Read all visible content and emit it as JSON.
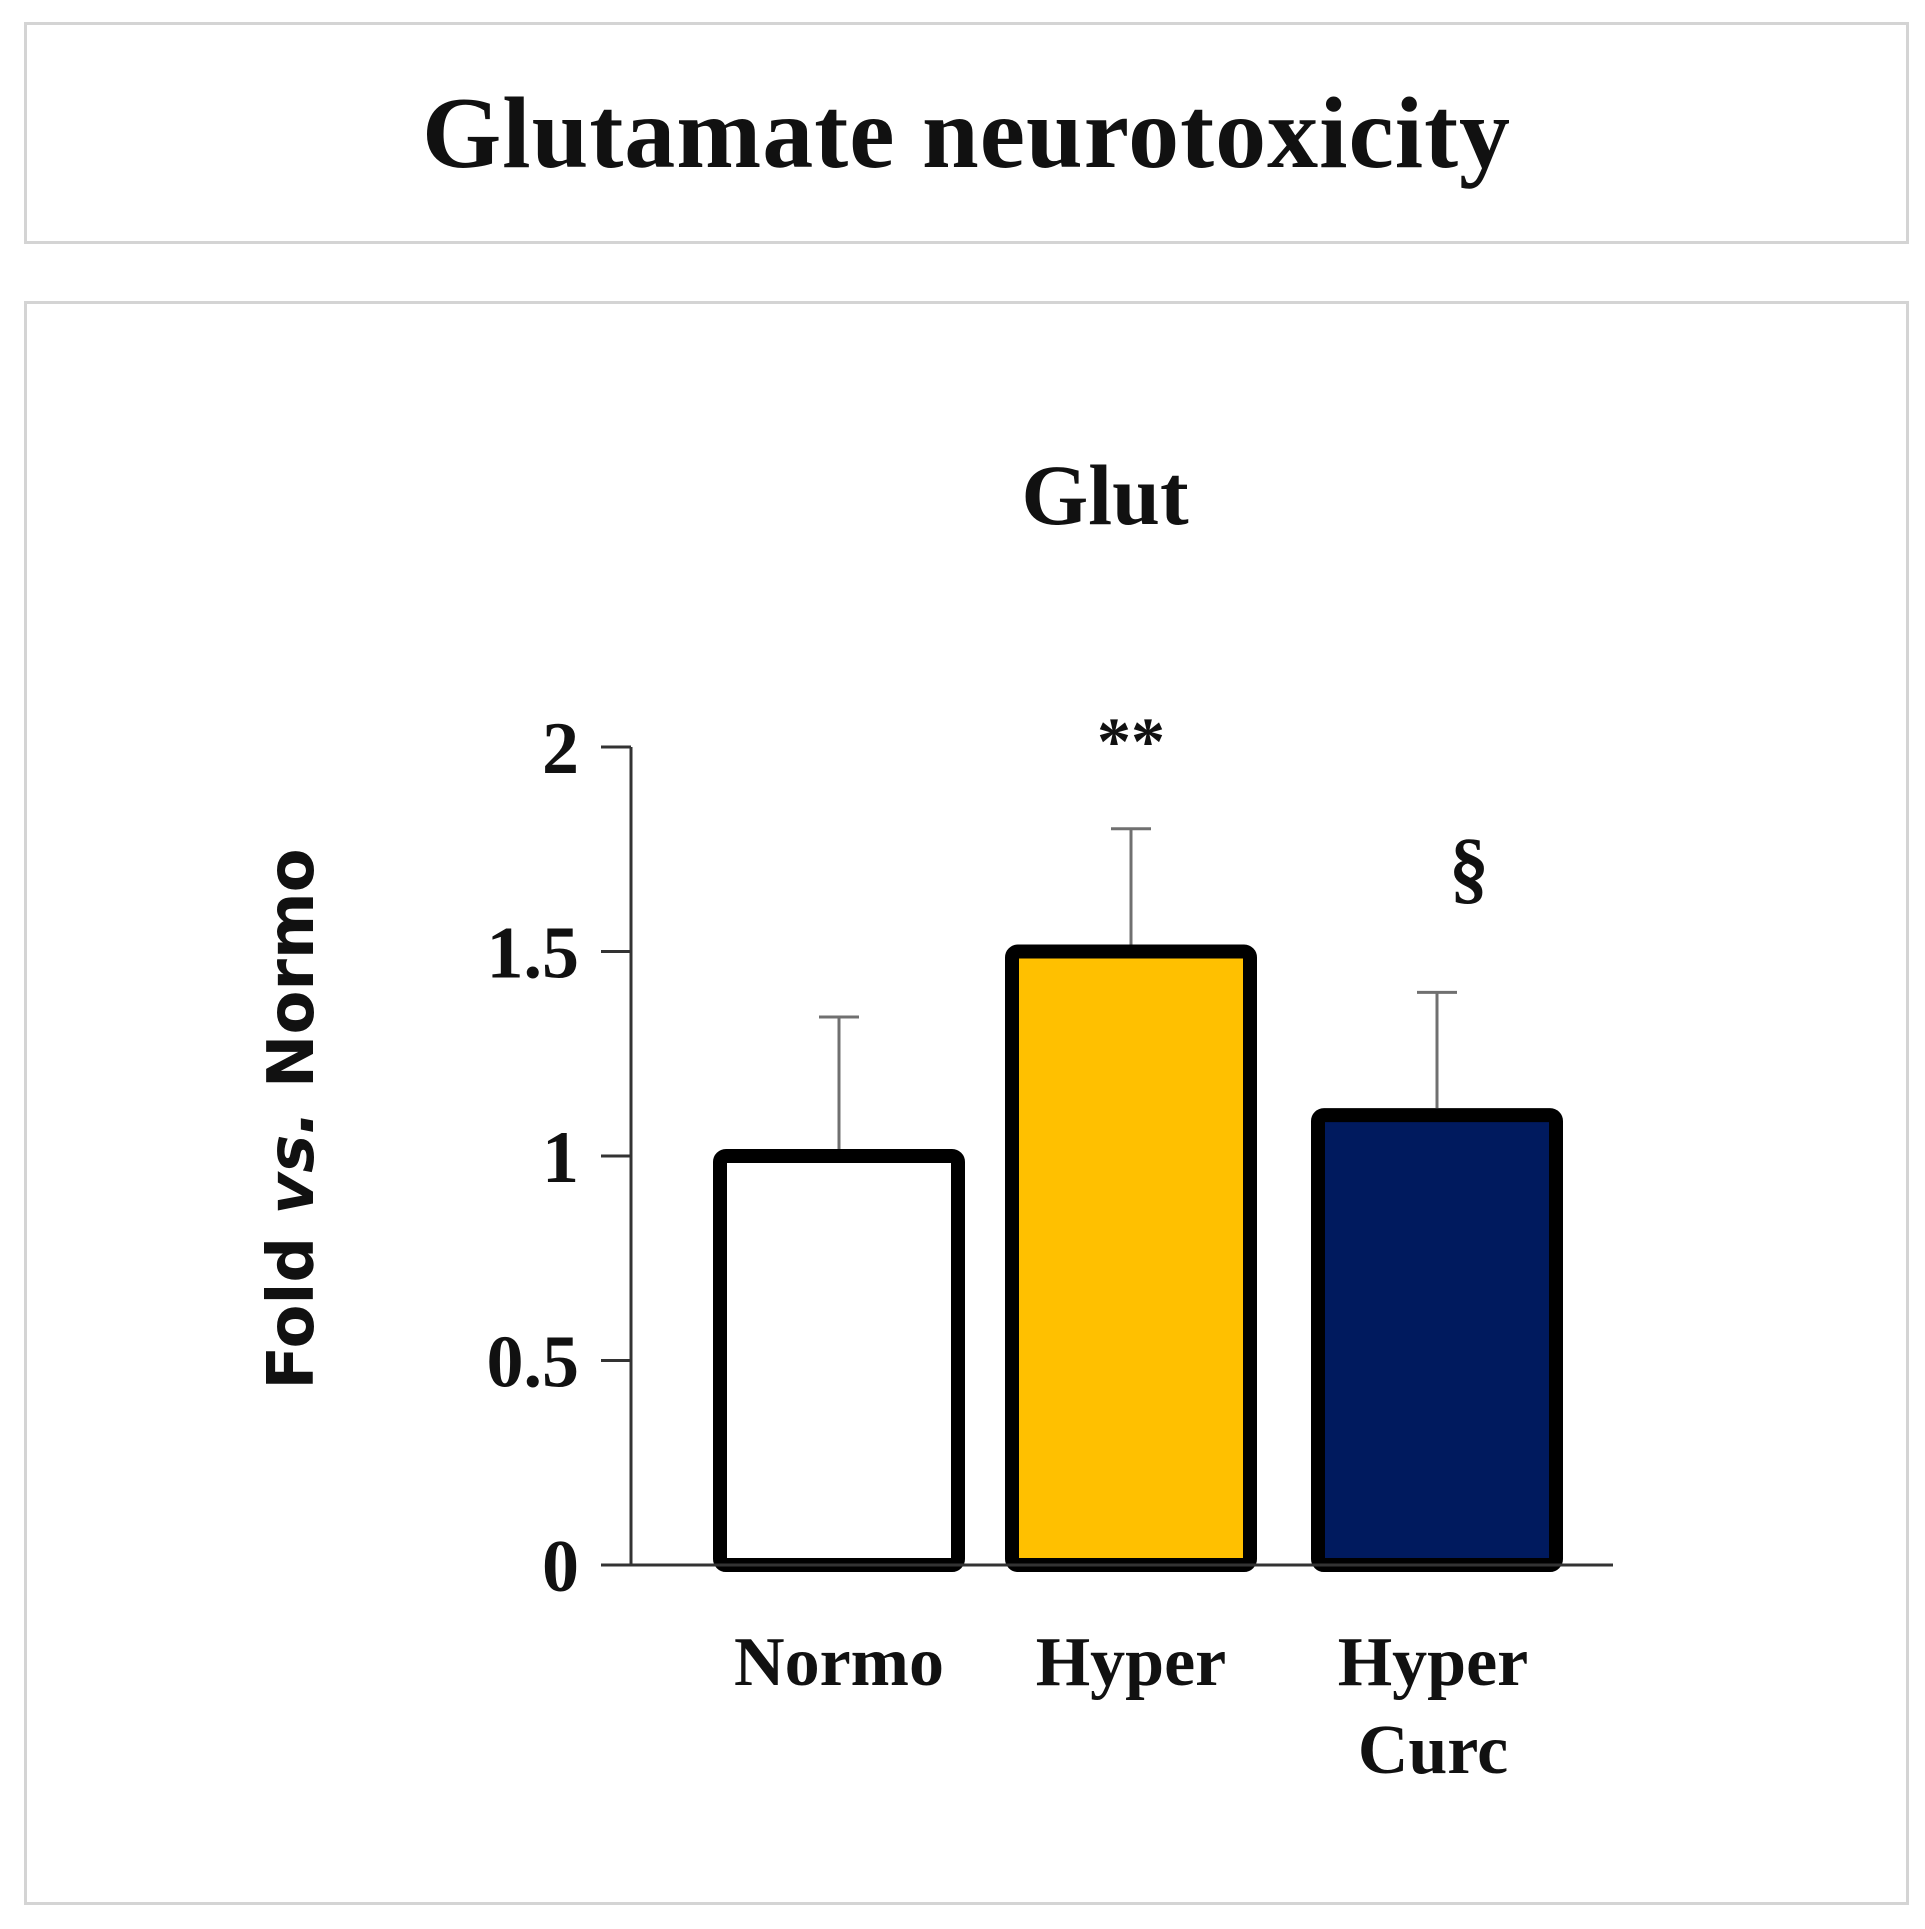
{
  "header": {
    "title": "Glutamate neurotoxicity"
  },
  "chart_data": {
    "type": "bar",
    "title": "Glut",
    "ylabel": {
      "prefix": "Fold ",
      "italic": "vs.",
      "suffix": " Normo"
    },
    "ylim": [
      0,
      2
    ],
    "yticks": [
      "0",
      "0.5",
      "1",
      "1.5",
      "2"
    ],
    "grid": false,
    "categories": [
      {
        "lines": [
          "Normo"
        ]
      },
      {
        "lines": [
          "Hyper"
        ]
      },
      {
        "lines": [
          "Hyper",
          "Curc"
        ]
      }
    ],
    "values": [
      1.0,
      1.5,
      1.1
    ],
    "errors": [
      0.34,
      0.3,
      0.3
    ],
    "annotations": [
      "",
      "**",
      "§"
    ],
    "colors": [
      "#ffffff",
      "#ffc000",
      "#001a5e"
    ],
    "edge_color": "#000000"
  }
}
